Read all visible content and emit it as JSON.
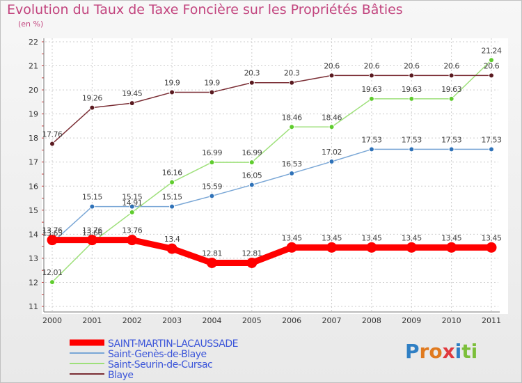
{
  "chart_data": {
    "type": "line",
    "title": "Evolution du Taux de Taxe Foncière sur les Propriétés Bâties",
    "subtitle": "(en %)",
    "x": [
      "2000",
      "2001",
      "2002",
      "2003",
      "2004",
      "2005",
      "2006",
      "2007",
      "2008",
      "2009",
      "2010",
      "2011"
    ],
    "ylim": [
      11,
      22
    ],
    "yticks": [
      "11",
      "12",
      "13",
      "14",
      "15",
      "16",
      "17",
      "18",
      "19",
      "20",
      "21",
      "22"
    ],
    "grid": true,
    "legend_position": "bottom-left",
    "series": [
      {
        "name": "SAINT-MARTIN-LACAUSSADE",
        "color": "#ff0000",
        "point_color": "#ff0000",
        "bold": true,
        "values": [
          13.76,
          13.76,
          13.76,
          13.4,
          12.81,
          12.81,
          13.45,
          13.45,
          13.45,
          13.45,
          13.45,
          13.45
        ],
        "labels": [
          "13.76",
          "13.76",
          "13.76",
          "13.4",
          "12.81",
          "12.81",
          "13.45",
          "13.45",
          "13.45",
          "13.45",
          "13.45",
          "13.45"
        ]
      },
      {
        "name": "Saint-Genès-de-Blaye",
        "color": "#7aa7d6",
        "point_color": "#2f72b8",
        "bold": false,
        "values": [
          13.65,
          15.15,
          15.15,
          15.15,
          15.59,
          16.05,
          16.53,
          17.02,
          17.53,
          17.53,
          17.53,
          17.53
        ],
        "labels": [
          "13.65",
          "15.15",
          "15.15",
          "15.15",
          "15.59",
          "16.05",
          "16.53",
          "17.02",
          "17.53",
          "17.53",
          "17.53",
          "17.53"
        ]
      },
      {
        "name": "Saint-Seurin-de-Cursac",
        "color": "#9ee07a",
        "point_color": "#5fcc2e",
        "bold": false,
        "values": [
          12.01,
          13.66,
          14.91,
          16.16,
          16.99,
          16.99,
          18.46,
          18.46,
          19.63,
          19.63,
          19.63,
          21.24
        ],
        "labels": [
          "12.01",
          "13.66",
          "14.91",
          "16.16",
          "16.99",
          "16.99",
          "18.46",
          "18.46",
          "19.63",
          "19.63",
          "19.63",
          "21.24"
        ]
      },
      {
        "name": "Blaye",
        "color": "#7a2d34",
        "point_color": "#5a1a20",
        "bold": false,
        "values": [
          17.76,
          19.26,
          19.45,
          19.9,
          19.9,
          20.3,
          20.3,
          20.6,
          20.6,
          20.6,
          20.6,
          20.6
        ],
        "labels": [
          "17.76",
          "19.26",
          "19.45",
          "19.9",
          "19.9",
          "20.3",
          "20.3",
          "20.6",
          "20.6",
          "20.6",
          "20.6",
          "20.6"
        ]
      }
    ]
  },
  "branding": {
    "logo_text": "Proxiti",
    "letters": [
      {
        "ch": "P",
        "color": "#2f7fc4"
      },
      {
        "ch": "r",
        "color": "#e07a1f"
      },
      {
        "ch": "o",
        "color": "#e07a1f"
      },
      {
        "ch": "x",
        "color": "#e0393e"
      },
      {
        "ch": "i",
        "color": "#2f7fc4"
      },
      {
        "ch": "t",
        "color": "#7cbf3a"
      },
      {
        "ch": "i",
        "color": "#7cbf3a"
      }
    ]
  }
}
